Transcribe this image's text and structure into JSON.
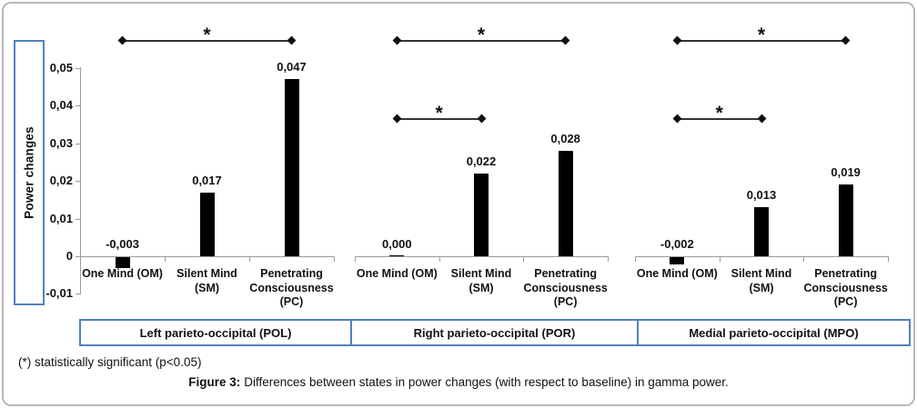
{
  "figure": {
    "footnote": "(*) statistically significant (p<0.05)",
    "caption_label": "Figure 3:",
    "caption_text": "Differences between states in power changes (with respect to baseline) in gamma power."
  },
  "chart_data": {
    "type": "bar",
    "title": "",
    "ylabel": "Power changes",
    "xlabel": "",
    "ylim": [
      -0.01,
      0.05
    ],
    "ytick_step": 0.01,
    "ytick_labels": [
      "-0,01",
      "0",
      "0,01",
      "0,02",
      "0,03",
      "0,04",
      "0,05"
    ],
    "grid": false,
    "legend_position": "none",
    "categories": [
      "One Mind (OM)",
      "Silent Mind (SM)",
      "Penetrating Consciousness (PC)"
    ],
    "category_display": [
      [
        "One Mind (OM)"
      ],
      [
        "Silent Mind",
        "(SM)"
      ],
      [
        "Penetrating",
        "Consciousness",
        "(PC)"
      ]
    ],
    "groups": [
      {
        "label": "Left parieto-occipital (POL)",
        "values": [
          -0.003,
          0.017,
          0.047
        ],
        "value_labels": [
          "-0,003",
          "0,017",
          "0,047"
        ],
        "significance": [
          {
            "from": 0,
            "to": 2,
            "label": "*"
          }
        ]
      },
      {
        "label": "Right parieto-occipital (POR)",
        "values": [
          0,
          0.022,
          0.028
        ],
        "value_labels": [
          "0,000",
          "0,022",
          "0,028"
        ],
        "significance": [
          {
            "from": 0,
            "to": 2,
            "label": "*"
          },
          {
            "from": 0,
            "to": 1,
            "label": "*"
          }
        ]
      },
      {
        "label": "Medial parieto-occipital (MPO)",
        "values": [
          -0.002,
          0.013,
          0.019
        ],
        "value_labels": [
          "-0,002",
          "0,013",
          "0,019"
        ],
        "significance": [
          {
            "from": 0,
            "to": 2,
            "label": "*"
          },
          {
            "from": 0,
            "to": 1,
            "label": "*"
          }
        ]
      }
    ]
  },
  "colors": {
    "accent_blue": "#4f81bd",
    "frame_gray": "#b9b9b9",
    "axis_gray": "#9c9c9c",
    "bar_black": "#000000",
    "sig_line": "#333333",
    "text_black": "#111111"
  }
}
